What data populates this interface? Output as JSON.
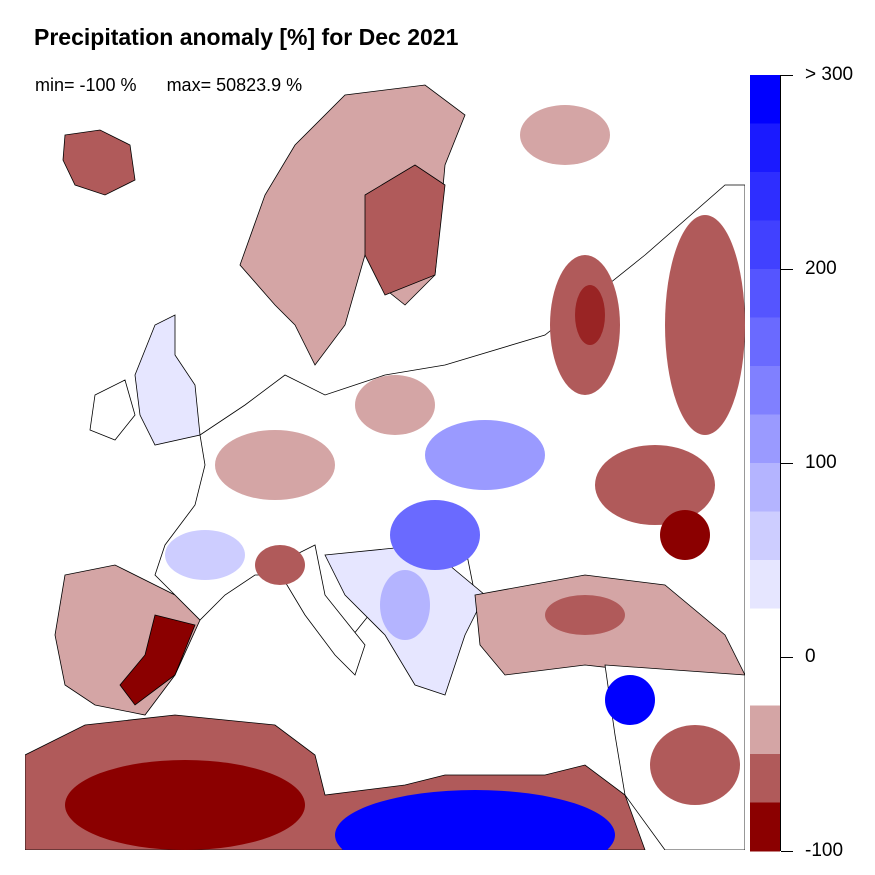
{
  "title": "Precipitation anomaly [%] for Dec 2021",
  "stats": {
    "min": "min= -100 %",
    "max": "max= 50823.9 %"
  },
  "colorbar": {
    "tick_labels": [
      "> 300",
      "200",
      "100",
      "0",
      "-100"
    ],
    "tick_values": [
      300,
      200,
      100,
      0,
      -100
    ],
    "range": [
      -100,
      300
    ],
    "bins": [
      {
        "from": 275,
        "to": 300,
        "color": "#0000FF"
      },
      {
        "from": 250,
        "to": 275,
        "color": "#1A1AFF"
      },
      {
        "from": 225,
        "to": 250,
        "color": "#2E2EFF"
      },
      {
        "from": 200,
        "to": 225,
        "color": "#4141FF"
      },
      {
        "from": 175,
        "to": 200,
        "color": "#5555FF"
      },
      {
        "from": 150,
        "to": 175,
        "color": "#6A6AFF"
      },
      {
        "from": 125,
        "to": 150,
        "color": "#8080FF"
      },
      {
        "from": 100,
        "to": 125,
        "color": "#9A9AFF"
      },
      {
        "from": 75,
        "to": 100,
        "color": "#B4B4FF"
      },
      {
        "from": 50,
        "to": 75,
        "color": "#CDCDFF"
      },
      {
        "from": 25,
        "to": 50,
        "color": "#E6E6FF"
      },
      {
        "from": -25,
        "to": 25,
        "color": "#FFFFFF"
      },
      {
        "from": -50,
        "to": -25,
        "color": "#D4A5A5"
      },
      {
        "from": -75,
        "to": -50,
        "color": "#B05A5A"
      },
      {
        "from": -100,
        "to": -75,
        "color": "#8B0000"
      }
    ]
  },
  "map": {
    "region": "Europe",
    "colors": {
      "dry_light": "#D4A5A5",
      "dry_mid": "#B05A5A",
      "dry_strong": "#8B0000",
      "wet_light": "#E6E6FF",
      "wet_mid": "#9A9AFF",
      "wet_mid2": "#6A6AFF",
      "wet_strong": "#0000FF",
      "border": "#000000"
    }
  }
}
